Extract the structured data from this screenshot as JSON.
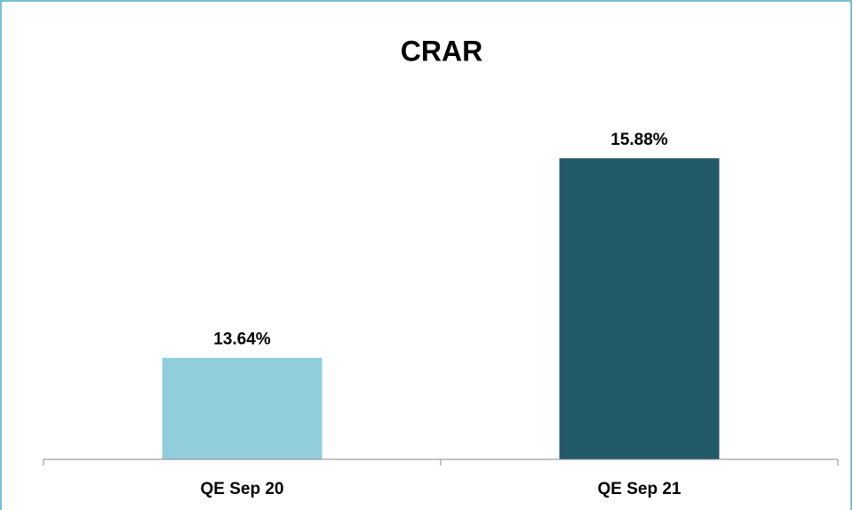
{
  "chart_data": {
    "type": "bar",
    "title": "CRAR",
    "categories": [
      "QE Sep 20",
      "QE Sep 21"
    ],
    "values": [
      13.64,
      15.88
    ],
    "value_labels": [
      "13.64%",
      "15.88%"
    ],
    "colors": [
      "#92cddc",
      "#215968"
    ],
    "ylim": [
      12.5,
      16.5
    ]
  }
}
